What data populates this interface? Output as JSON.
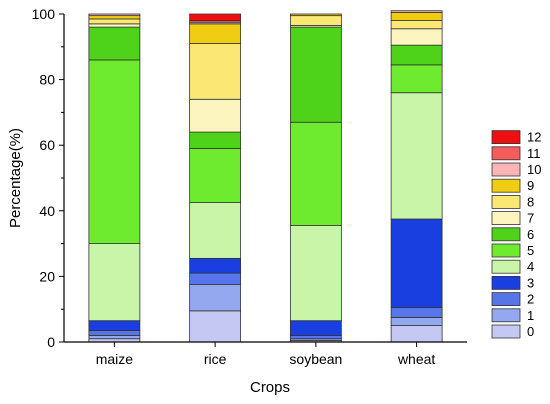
{
  "chart_data": {
    "type": "bar",
    "stacked": true,
    "categories": [
      "maize",
      "rice",
      "soybean",
      "wheat"
    ],
    "xlabel": "Crops",
    "ylabel": "Percentage(%)",
    "ylim": [
      0,
      100
    ],
    "yticks": [
      0,
      20,
      40,
      60,
      80,
      100
    ],
    "legend_position": "right",
    "series": [
      {
        "name": "0",
        "color": "#c4c8f2",
        "values": [
          1.0,
          9.5,
          0.5,
          5.0
        ]
      },
      {
        "name": "1",
        "color": "#93a8ee",
        "values": [
          1.0,
          8.0,
          0.5,
          2.5
        ]
      },
      {
        "name": "2",
        "color": "#5575e8",
        "values": [
          1.5,
          3.5,
          1.0,
          3.0
        ]
      },
      {
        "name": "3",
        "color": "#1a3fe0",
        "values": [
          3.0,
          4.5,
          4.5,
          27.0
        ]
      },
      {
        "name": "4",
        "color": "#c8f5a8",
        "values": [
          23.5,
          17.0,
          29.0,
          38.5
        ]
      },
      {
        "name": "5",
        "color": "#6eeb2e",
        "values": [
          56.0,
          16.5,
          31.5,
          8.5
        ]
      },
      {
        "name": "6",
        "color": "#4ed21a",
        "values": [
          10.0,
          5.0,
          29.0,
          6.0
        ]
      },
      {
        "name": "7",
        "color": "#fdf5c0",
        "values": [
          1.0,
          10.0,
          0.5,
          5.0
        ]
      },
      {
        "name": "8",
        "color": "#fae774",
        "values": [
          1.5,
          17.0,
          3.0,
          2.5
        ]
      },
      {
        "name": "9",
        "color": "#f0cd12",
        "values": [
          1.0,
          6.0,
          0.5,
          2.5
        ]
      },
      {
        "name": "10",
        "color": "#fcb4b4",
        "values": [
          0.5,
          0.5,
          0.0,
          0.5
        ]
      },
      {
        "name": "11",
        "color": "#f55c5c",
        "values": [
          0.0,
          0.5,
          0.0,
          0.0
        ]
      },
      {
        "name": "12",
        "color": "#ee1010",
        "values": [
          0.0,
          2.0,
          0.0,
          0.0
        ]
      }
    ]
  }
}
